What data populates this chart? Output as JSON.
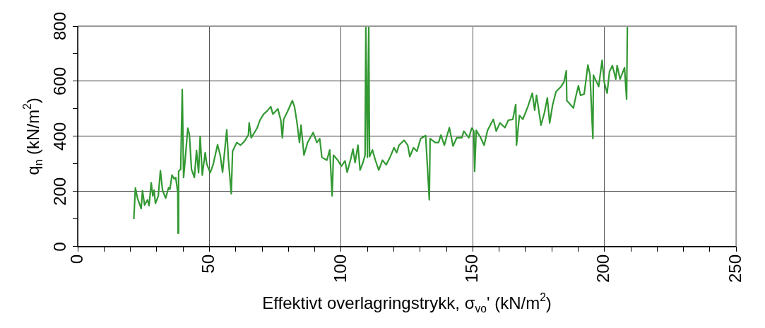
{
  "chart_data": {
    "type": "line",
    "xlabel": "Effektivt overlagringstrykk, σ$_{vo}$' (kN/m$^{2}$)",
    "ylabel": "q$_{n}$ (kN/m$^{2}$)",
    "xlim": [
      0,
      250
    ],
    "ylim": [
      0,
      800
    ],
    "xticks": [
      0,
      {
        "value": 10,
        "label": null
      },
      {
        "value": 20,
        "label": null
      },
      {
        "value": 30,
        "label": null
      },
      {
        "value": 40,
        "label": null
      },
      50,
      {
        "value": 60,
        "label": null
      },
      {
        "value": 70,
        "label": null
      },
      {
        "value": 80,
        "label": null
      },
      {
        "value": 90,
        "label": null
      },
      100,
      {
        "value": 110,
        "label": null
      },
      {
        "value": 120,
        "label": null
      },
      {
        "value": 130,
        "label": null
      },
      {
        "value": 140,
        "label": null
      },
      150,
      {
        "value": 160,
        "label": null
      },
      {
        "value": 170,
        "label": null
      },
      {
        "value": 180,
        "label": null
      },
      {
        "value": 190,
        "label": null
      },
      200,
      {
        "value": 210,
        "label": null
      },
      {
        "value": 220,
        "label": null
      },
      {
        "value": 230,
        "label": null
      },
      {
        "value": 240,
        "label": null
      },
      250
    ],
    "yticks": [
      0,
      {
        "value": 100,
        "label": null
      },
      200,
      {
        "value": 300,
        "label": null
      },
      400,
      {
        "value": 500,
        "label": null
      },
      600,
      {
        "value": 700,
        "label": null
      },
      800
    ],
    "grid": true,
    "marker": "none",
    "line_style": "solid",
    "series": [
      {
        "color": "#339933",
        "x": [
          21.3,
          21.9,
          22.7,
          24.1,
          24.6,
          25.4,
          26.5,
          27.1,
          27.9,
          28.5,
          29.0,
          29.5,
          30.6,
          31.4,
          32.2,
          33.4,
          34.5,
          35.0,
          35.8,
          36.6,
          37.2,
          38.0,
          38.1,
          38.3,
          39.1,
          39.7,
          40.2,
          40.8,
          41.8,
          42.4,
          43.2,
          44.3,
          45.1,
          45.9,
          46.5,
          47.3,
          48.4,
          49.0,
          50.3,
          51.4,
          53.1,
          54.1,
          55.0,
          56.6,
          57.2,
          58.3,
          58.8,
          60.4,
          61.8,
          63.2,
          64.8,
          65.1,
          65.9,
          68.1,
          69.2,
          70.6,
          71.9,
          73.3,
          74.1,
          76.0,
          77.1,
          77.7,
          78.2,
          79.6,
          81.5,
          82.3,
          83.2,
          84.2,
          84.8,
          85.9,
          87.3,
          89.4,
          90.8,
          91.9,
          92.7,
          94.6,
          95.7,
          96.6,
          97.1,
          98.7,
          100.1,
          101.5,
          102.3,
          103.7,
          104.5,
          105.3,
          106.4,
          107.2,
          108.3,
          109.1,
          109.4,
          110.0,
          110.5,
          110.8,
          111.9,
          113.0,
          114.3,
          115.7,
          117.1,
          118.7,
          120.1,
          121.1,
          122.0,
          123.9,
          125.3,
          126.1,
          127.5,
          128.8,
          130.2,
          132.1,
          133.5,
          133.8,
          135.7,
          137.0,
          137.9,
          139.2,
          141.1,
          142.5,
          143.9,
          145.8,
          146.6,
          148.5,
          149.6,
          150.4,
          150.7,
          151.3,
          153.0,
          154.3,
          155.6,
          157.8,
          158.9,
          160.3,
          162.2,
          163.5,
          165.2,
          166.3,
          166.6,
          167.7,
          169.0,
          170.9,
          172.6,
          173.5,
          174.2,
          175.9,
          177.2,
          178.3,
          179.2,
          180.3,
          181.6,
          183.5,
          184.6,
          185.5,
          185.7,
          188.2,
          189.0,
          190.1,
          190.9,
          192.3,
          193.7,
          194.5,
          195.6,
          195.8,
          197.8,
          199.1,
          199.9,
          201.0,
          201.9,
          203.0,
          204.3,
          204.8,
          205.9,
          207.6,
          208.4,
          208.7
        ],
        "values": [
          100,
          213,
          176,
          138,
          203,
          151,
          170,
          149,
          232,
          184,
          205,
          157,
          184,
          276,
          205,
          176,
          214,
          208,
          260,
          246,
          251,
          197,
          49,
          273,
          281,
          570,
          251,
          314,
          430,
          408,
          281,
          251,
          349,
          268,
          400,
          260,
          341,
          300,
          268,
          297,
          370,
          332,
          270,
          424,
          319,
          192,
          346,
          378,
          368,
          381,
          405,
          449,
          395,
          430,
          459,
          481,
          492,
          508,
          481,
          500,
          459,
          395,
          462,
          489,
          530,
          508,
          454,
          378,
          441,
          332,
          378,
          414,
          378,
          392,
          324,
          314,
          351,
          184,
          332,
          314,
          292,
          311,
          270,
          319,
          354,
          305,
          368,
          278,
          305,
          332,
          800,
          324,
          800,
          327,
          351,
          314,
          278,
          314,
          297,
          327,
          359,
          341,
          368,
          386,
          368,
          327,
          359,
          346,
          392,
          403,
          170,
          392,
          378,
          378,
          405,
          368,
          432,
          365,
          395,
          395,
          419,
          395,
          430,
          419,
          273,
          422,
          395,
          368,
          422,
          462,
          419,
          449,
          432,
          459,
          462,
          516,
          368,
          476,
          462,
          508,
          557,
          495,
          549,
          441,
          486,
          540,
          449,
          514,
          562,
          581,
          597,
          638,
          530,
          503,
          540,
          584,
          549,
          554,
          659,
          624,
          392,
          622,
          581,
          676,
          597,
          557,
          635,
          657,
          608,
          657,
          608,
          649,
          535,
          800
        ]
      }
    ]
  }
}
